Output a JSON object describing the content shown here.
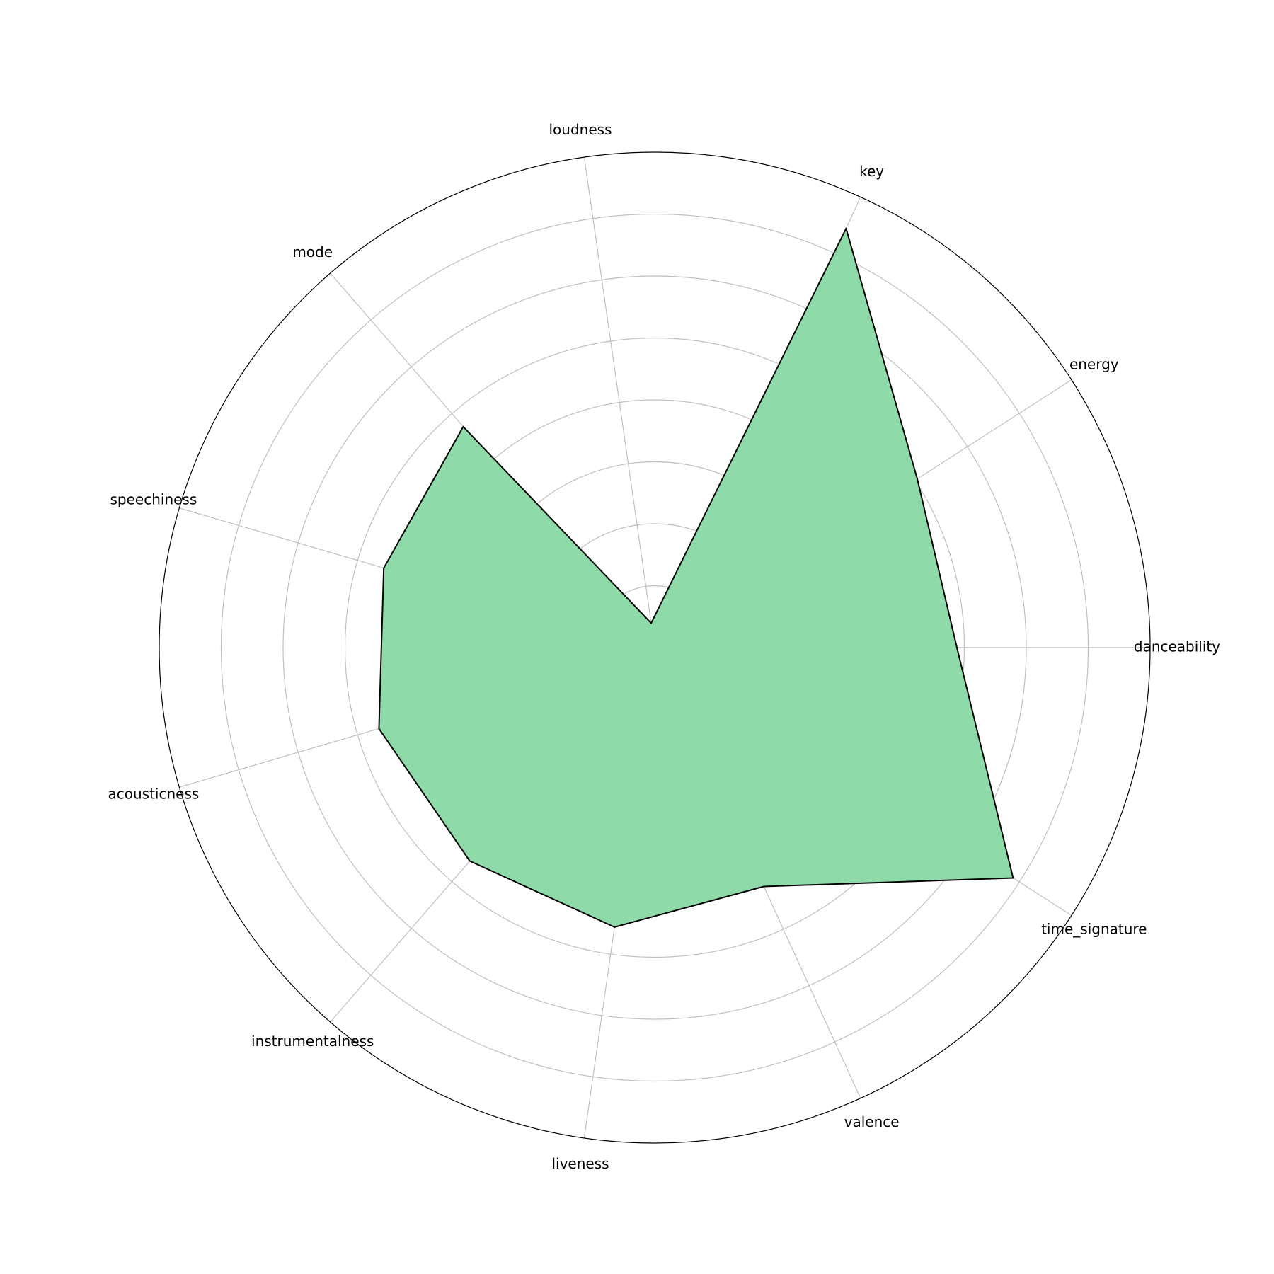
{
  "chart_data": {
    "type": "radar",
    "title": "",
    "categories": [
      "danceability",
      "energy",
      "key",
      "loudness",
      "mode",
      "speechiness",
      "acousticness",
      "instrumentalness",
      "liveness",
      "valence",
      "time_signature"
    ],
    "series": [
      {
        "values": [
          0.61,
          0.63,
          0.93,
          0.05,
          0.59,
          0.57,
          0.58,
          0.57,
          0.57,
          0.53,
          0.86
        ],
        "fill_color": "#8fdaa9",
        "line_color": "#000000"
      }
    ],
    "rlim": [
      0,
      1
    ],
    "grid": true,
    "grid_color": "#c0c0c0"
  }
}
